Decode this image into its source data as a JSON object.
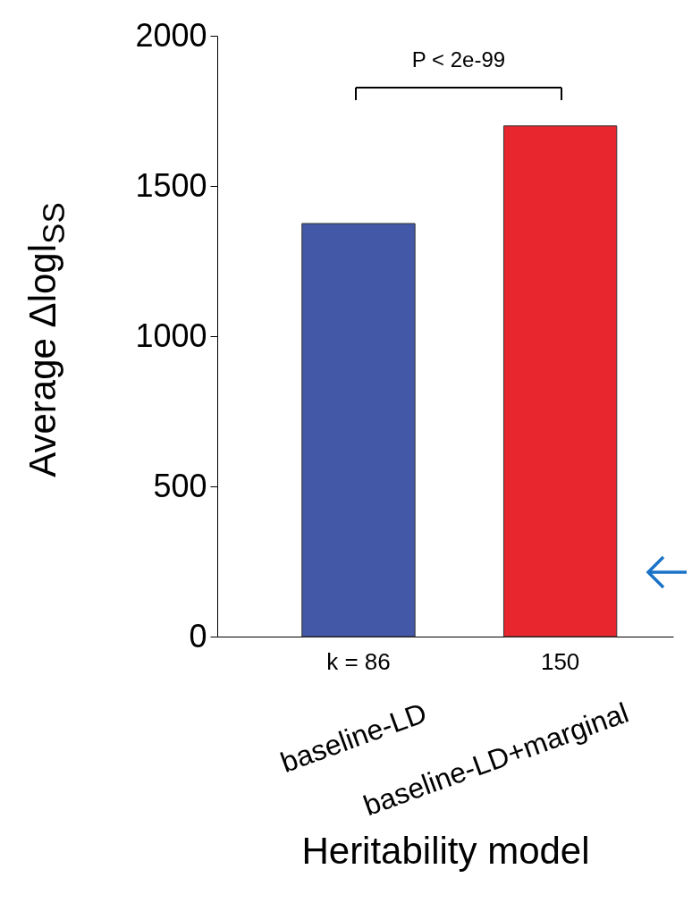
{
  "chart_data": {
    "type": "bar",
    "categories": [
      "baseline-LD",
      "baseline-LD+marginal"
    ],
    "series": [
      {
        "colors": [
          "#4358a6",
          "#e8262d"
        ],
        "values": [
          1375,
          1700
        ]
      }
    ],
    "xlabel": "Heritability model",
    "ylabel": "Average Δlogl$_{SS}$",
    "ylim": [
      0,
      2000
    ],
    "yticks": [
      0,
      500,
      1000,
      1500,
      2000
    ],
    "annotations": [
      "P < 2e-99",
      "k = 86",
      "150"
    ],
    "grid": false
  }
}
